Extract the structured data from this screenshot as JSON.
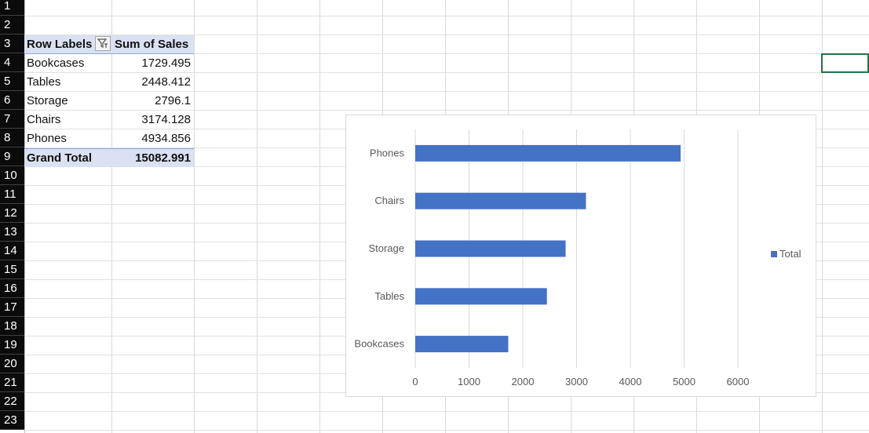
{
  "sheet": {
    "row_numbers": [
      "1",
      "2",
      "3",
      "4",
      "5",
      "6",
      "7",
      "8",
      "9",
      "10",
      "11",
      "12",
      "13",
      "14",
      "15",
      "16",
      "17",
      "18",
      "19",
      "20",
      "21",
      "22",
      "23"
    ],
    "highlighted_rows": [
      "4"
    ]
  },
  "pivot": {
    "header_row_labels": "Row Labels",
    "header_sum": "Sum of Sales",
    "rows": [
      {
        "label": "Bookcases",
        "value": "1729.495"
      },
      {
        "label": "Tables",
        "value": "2448.412"
      },
      {
        "label": "Storage",
        "value": "2796.1"
      },
      {
        "label": "Chairs",
        "value": "3174.128"
      },
      {
        "label": "Phones",
        "value": "4934.856"
      }
    ],
    "total_label": "Grand Total",
    "total_value": "15082.991"
  },
  "chart_data": {
    "type": "bar",
    "orientation": "horizontal",
    "categories": [
      "Bookcases",
      "Tables",
      "Storage",
      "Chairs",
      "Phones"
    ],
    "series": [
      {
        "name": "Total",
        "values": [
          1729.495,
          2448.412,
          2796.1,
          3174.128,
          4934.856
        ]
      }
    ],
    "xlim": [
      0,
      6000
    ],
    "x_ticks": [
      "0",
      "1000",
      "2000",
      "3000",
      "4000",
      "5000",
      "6000"
    ],
    "grid": true,
    "legend": "right",
    "bar_color": "#4472c4"
  }
}
